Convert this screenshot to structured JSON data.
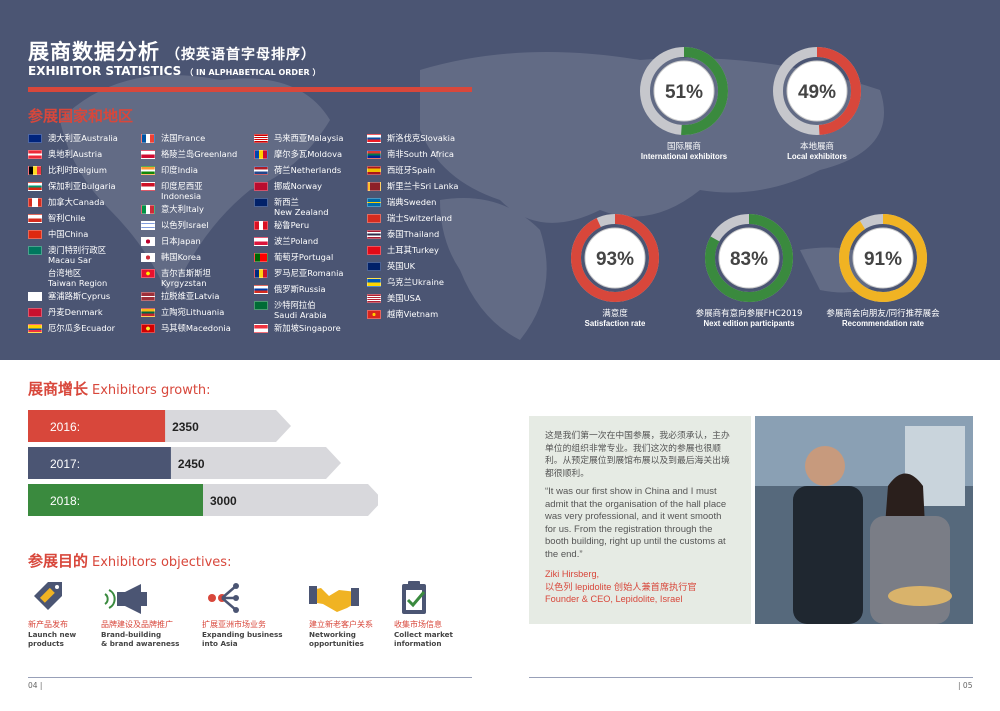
{
  "header": {
    "title_cn": "展商数据分析",
    "title_cn_sub": "（按英语首字母排序）",
    "title_en": "EXHIBITOR STATISTICS",
    "title_en_sub": "（ IN ALPHABETICAL ORDER ）"
  },
  "countries_heading": "参展国家和地区",
  "countries": [
    [
      {
        "name": "澳大利亚Australia",
        "flag": "australia-flag"
      },
      {
        "name": "奥地利Austria",
        "flag": "austria-flag"
      },
      {
        "name": "比利时Belgium",
        "flag": "belgium-flag"
      },
      {
        "name": "保加利亚Bulgaria",
        "flag": "bulgaria-flag"
      },
      {
        "name": "加拿大Canada",
        "flag": "canada-flag"
      },
      {
        "name": "智利Chile",
        "flag": "chile-flag"
      },
      {
        "name": "中国China",
        "flag": "china-flag"
      },
      {
        "name": "澳门特别行政区",
        "name2": "Macau Sar",
        "flag": "macau-flag"
      },
      {
        "name": "台湾地区",
        "name2": "Taiwan Region",
        "flag": "none"
      },
      {
        "name": "塞浦路斯Cyprus",
        "flag": "cyprus-flag"
      },
      {
        "name": "丹麦Denmark",
        "flag": "denmark-flag"
      },
      {
        "name": "厄尔瓜多Ecuador",
        "flag": "ecuador-flag"
      }
    ],
    [
      {
        "name": "法国France",
        "flag": "france-flag"
      },
      {
        "name": "格陵兰岛Greenland",
        "flag": "greenland-flag"
      },
      {
        "name": "印度India",
        "flag": "india-flag"
      },
      {
        "name": "印度尼西亚",
        "name2": "Indonesia",
        "flag": "indonesia-flag"
      },
      {
        "name": "意大利Italy",
        "flag": "italy-flag"
      },
      {
        "name": "以色列Israel",
        "flag": "israel-flag"
      },
      {
        "name": "日本Japan",
        "flag": "japan-flag"
      },
      {
        "name": "韩国Korea",
        "flag": "korea-flag"
      },
      {
        "name": "吉尔吉斯斯坦",
        "name2": "Kyrgyzstan",
        "flag": "kyrgyzstan-flag"
      },
      {
        "name": "拉脱维亚Latvia",
        "flag": "latvia-flag"
      },
      {
        "name": "立陶宛Lithuania",
        "flag": "lithuania-flag"
      },
      {
        "name": "马其顿Macedonia",
        "flag": "macedonia-flag"
      }
    ],
    [
      {
        "name": "马来西亚Malaysia",
        "flag": "malaysia-flag"
      },
      {
        "name": "摩尔多瓦Moldova",
        "flag": "moldova-flag"
      },
      {
        "name": "荷兰Netherlands",
        "flag": "netherlands-flag"
      },
      {
        "name": "挪威Norway",
        "flag": "norway-flag"
      },
      {
        "name": "新西兰",
        "name2": "New Zealand",
        "flag": "newzealand-flag"
      },
      {
        "name": "秘鲁Peru",
        "flag": "peru-flag"
      },
      {
        "name": "波兰Poland",
        "flag": "poland-flag"
      },
      {
        "name": "葡萄牙Portugal",
        "flag": "portugal-flag"
      },
      {
        "name": "罗马尼亚Romania",
        "flag": "romania-flag"
      },
      {
        "name": "俄罗斯Russia",
        "flag": "russia-flag"
      },
      {
        "name": "沙特阿拉伯",
        "name2": "Saudi Arabia",
        "flag": "saudi-flag"
      },
      {
        "name": "新加坡Singapore",
        "flag": "singapore-flag"
      }
    ],
    [
      {
        "name": "斯洛伐克Slovakia",
        "flag": "slovakia-flag"
      },
      {
        "name": "南非South Africa",
        "flag": "southafrica-flag"
      },
      {
        "name": "西班牙Spain",
        "flag": "spain-flag"
      },
      {
        "name": "斯里兰卡Sri Lanka",
        "flag": "srilanka-flag"
      },
      {
        "name": "瑞典Sweden",
        "flag": "sweden-flag"
      },
      {
        "name": "瑞士Switzerland",
        "flag": "switzerland-flag"
      },
      {
        "name": "泰国Thailand",
        "flag": "thailand-flag"
      },
      {
        "name": "土耳其Turkey",
        "flag": "turkey-flag"
      },
      {
        "name": "英国UK",
        "flag": "uk-flag"
      },
      {
        "name": "乌克兰Ukraine",
        "flag": "ukraine-flag"
      },
      {
        "name": "美国USA",
        "flag": "usa-flag"
      },
      {
        "name": "越南Vietnam",
        "flag": "vietnam-flag"
      }
    ]
  ],
  "stats": [
    {
      "value": 51,
      "label": "51%",
      "cn": "国际展商",
      "en": "International exhibitors",
      "color": "#3a8a3e"
    },
    {
      "value": 49,
      "label": "49%",
      "cn": "本地展商",
      "en": "Local exhibitors",
      "color": "#d8473b"
    },
    {
      "value": 93,
      "label": "93%",
      "cn": "满意度",
      "en": "Satisfaction rate",
      "color": "#d8473b"
    },
    {
      "value": 83,
      "label": "83%",
      "cn": "参展商有意向参展FHC2019",
      "en": "Next edition participants",
      "color": "#3a8a3e"
    },
    {
      "value": 91,
      "label": "91%",
      "cn": "参展商会向朋友/同行推荐展会",
      "en": "Recommendation rate",
      "color": "#f0b323"
    }
  ],
  "growth": {
    "heading_cn": "展商增长",
    "heading_en": "Exhibitors growth:",
    "chart_data": {
      "type": "bar",
      "categories": [
        "2016:",
        "2017:",
        "2018:"
      ],
      "values": [
        2350,
        2450,
        3000
      ],
      "colors": [
        "#d8473b",
        "#4b5573",
        "#3a8a3e"
      ]
    }
  },
  "objectives": {
    "heading_cn": "参展目的",
    "heading_en": "Exhibitors objectives:",
    "items": [
      {
        "cn": "新产品发布",
        "en1": "Launch new",
        "en2": "products",
        "icon": "new-tag-icon"
      },
      {
        "cn": "品牌建设及品牌推广",
        "en1": "Brand-building",
        "en2": "& brand awareness",
        "icon": "megaphone-icon"
      },
      {
        "cn": "扩展亚洲市场业务",
        "en1": "Expanding business",
        "en2": "into Asia",
        "icon": "network-icon"
      },
      {
        "cn": "建立新老客户关系",
        "en1": "Networking",
        "en2": "opportunities",
        "icon": "handshake-icon"
      },
      {
        "cn": "收集市场信息",
        "en1": "Collect market",
        "en2": "information",
        "icon": "clipboard-icon"
      }
    ]
  },
  "quote": {
    "cn": "这是我们第一次在中国参展，我必须承认，主办单位的组织非常专业。我们这次的参展也很顺利。从预定展位到展馆布展以及到最后海关出境都很顺利。",
    "en": "“It was our first show in China and I must admit that the organisation of the hall place was very professional, and it went smooth for us. From the registration through the booth building, right up until the customs at the end.”",
    "name": "Ziki Hirsberg,",
    "title_cn": "以色列 lepidolite 创始人兼首席执行官",
    "title_en": "Founder & CEO, Lepidolite, Israel"
  },
  "pages": {
    "left": "04",
    "right": "05"
  }
}
